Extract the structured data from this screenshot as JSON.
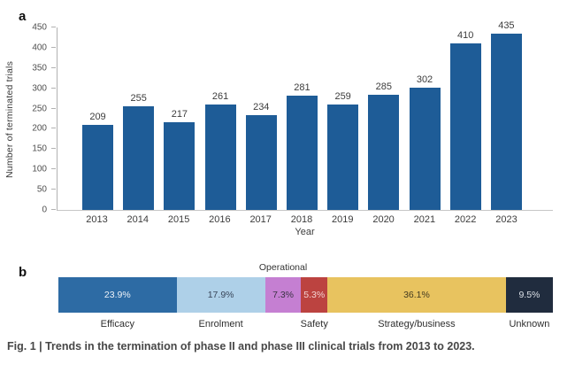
{
  "panel_a": {
    "label": "a",
    "bar_color": "#1e5c97",
    "value_label_color": "#3c3c3c"
  },
  "panel_b": {
    "label": "b",
    "segments": [
      {
        "label": "Efficacy",
        "value": 23.9,
        "display": "23.9%",
        "color": "#2d6ba4",
        "text_color": "#eef3f8",
        "label_position": "bottom"
      },
      {
        "label": "Enrolment",
        "value": 17.9,
        "display": "17.9%",
        "color": "#aed0e8",
        "text_color": "#39465a",
        "label_position": "bottom"
      },
      {
        "label": "Operational",
        "value": 7.3,
        "display": "7.3%",
        "color": "#c57fd2",
        "text_color": "#3a3344",
        "label_position": "top"
      },
      {
        "label": "Safety",
        "value": 5.3,
        "display": "5.3%",
        "color": "#bc4340",
        "text_color": "#f2d4d2",
        "label_position": "bottom"
      },
      {
        "label": "Strategy/business",
        "value": 36.1,
        "display": "36.1%",
        "color": "#e8c35f",
        "text_color": "#433a20",
        "label_position": "bottom"
      },
      {
        "label": "Unknown",
        "value": 9.5,
        "display": "9.5%",
        "color": "#202c3e",
        "text_color": "#dbe0e6",
        "label_position": "bottom"
      }
    ]
  },
  "caption": "Fig. 1 | Trends in the termination of phase II and phase III clinical trials from 2013 to 2023.",
  "chart_data": [
    {
      "type": "bar",
      "title": "",
      "categories": [
        "2013",
        "2014",
        "2015",
        "2016",
        "2017",
        "2018",
        "2019",
        "2020",
        "2021",
        "2022",
        "2023"
      ],
      "values": [
        209,
        255,
        217,
        261,
        234,
        281,
        259,
        285,
        302,
        410,
        435
      ],
      "xlabel": "Year",
      "ylabel": "Number of terminated trials",
      "ylim": [
        0,
        450
      ],
      "yticks": [
        0,
        50,
        100,
        150,
        200,
        250,
        300,
        350,
        400,
        450
      ],
      "grid": false,
      "legend": false,
      "bar_color": "#1e5c97",
      "value_labels": true
    },
    {
      "type": "bar",
      "subtype": "stacked-horizontal-percentage",
      "title": "",
      "categories": [
        "Efficacy",
        "Enrolment",
        "Operational",
        "Safety",
        "Strategy/business",
        "Unknown"
      ],
      "values": [
        23.9,
        17.9,
        7.3,
        5.3,
        36.1,
        9.5
      ],
      "unit": "%",
      "colors": [
        "#2d6ba4",
        "#aed0e8",
        "#c57fd2",
        "#bc4340",
        "#e8c35f",
        "#202c3e"
      ],
      "legend": false
    }
  ]
}
